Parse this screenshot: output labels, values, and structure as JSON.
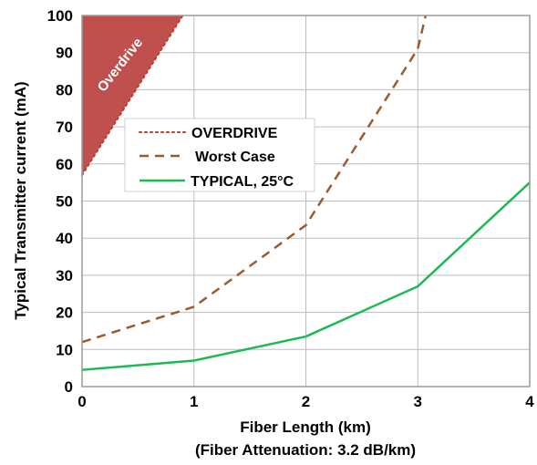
{
  "chart_data": {
    "type": "line",
    "xlabel": "Fiber Length (km)",
    "xlabel_sub": "(Fiber Attenuation: 3.2 dB/km)",
    "ylabel": "Typical Transmitter current (mA)",
    "xlim": [
      0,
      4
    ],
    "ylim": [
      0,
      100
    ],
    "x_ticks": [
      "0",
      "1",
      "2",
      "3",
      "4"
    ],
    "y_ticks": [
      "0",
      "10",
      "20",
      "30",
      "40",
      "50",
      "60",
      "70",
      "80",
      "90",
      "100"
    ],
    "grid": true,
    "legend_position": "upper-left",
    "series": [
      {
        "name": "OVERDRIVE",
        "color": "#c0392b",
        "style": "dotted",
        "x": [
          0,
          0.9
        ],
        "y": [
          57,
          100
        ]
      },
      {
        "name": "Worst Case",
        "color": "#9c5a2e",
        "style": "dashed",
        "x": [
          0,
          1,
          2,
          3,
          3.07
        ],
        "y": [
          12,
          21.5,
          43.5,
          91,
          100
        ]
      },
      {
        "name": "TYPICAL, 25°C",
        "color": "#1db954",
        "style": "solid",
        "x": [
          0,
          1,
          2,
          3,
          4
        ],
        "y": [
          4.5,
          7,
          13.5,
          27,
          55
        ]
      }
    ],
    "region": {
      "label": "Overdrive",
      "color": "#c0504d",
      "polygon": [
        [
          0,
          57
        ],
        [
          0,
          100
        ],
        [
          0.9,
          100
        ]
      ]
    }
  }
}
